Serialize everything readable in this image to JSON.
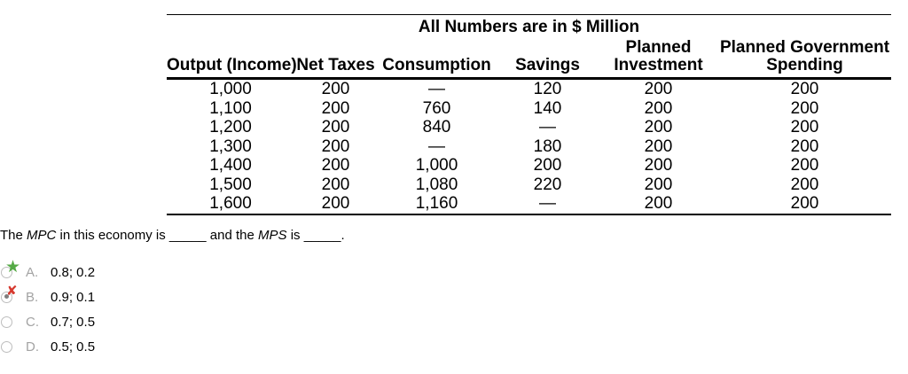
{
  "table": {
    "title": "All Numbers are in $ Million",
    "headers": [
      "Output (Income)",
      "Net Taxes",
      "Consumption",
      "Savings",
      "Planned\nInvestment",
      "Planned Government\nSpending"
    ],
    "rows": [
      [
        "1,000",
        "200",
        "—",
        "120",
        "200",
        "200"
      ],
      [
        "1,100",
        "200",
        "760",
        "140",
        "200",
        "200"
      ],
      [
        "1,200",
        "200",
        "840",
        "—",
        "200",
        "200"
      ],
      [
        "1,300",
        "200",
        "—",
        "180",
        "200",
        "200"
      ],
      [
        "1,400",
        "200",
        "1,000",
        "200",
        "200",
        "200"
      ],
      [
        "1,500",
        "200",
        "1,080",
        "220",
        "200",
        "200"
      ],
      [
        "1,600",
        "200",
        "1,160",
        "—",
        "200",
        "200"
      ]
    ]
  },
  "question": {
    "prefix": "The ",
    "term1": "MPC",
    "middle": " in this economy is ",
    "blank1": "_____",
    "and_the": " and the ",
    "term2": "MPS",
    "is": " is ",
    "blank2": "_____",
    "period": "."
  },
  "options": [
    {
      "letter": "A.",
      "value": "0.8; 0.2",
      "marker": "correct-star",
      "selected": false
    },
    {
      "letter": "B.",
      "value": "0.9; 0.1",
      "marker": "incorrect-x",
      "selected": true
    },
    {
      "letter": "C.",
      "value": "0.7; 0.5",
      "marker": "none",
      "selected": false
    },
    {
      "letter": "D.",
      "value": "0.5; 0.5",
      "marker": "none",
      "selected": false
    }
  ],
  "icons": {
    "star": "★",
    "x": "✘"
  },
  "colors": {
    "correct_star_green": "#55aa46",
    "incorrect_x_red": "#d6392e",
    "option_letter_gray": "#a3a3a3",
    "radio_border_gray": "#bdbdbd",
    "text_black": "#000000"
  }
}
